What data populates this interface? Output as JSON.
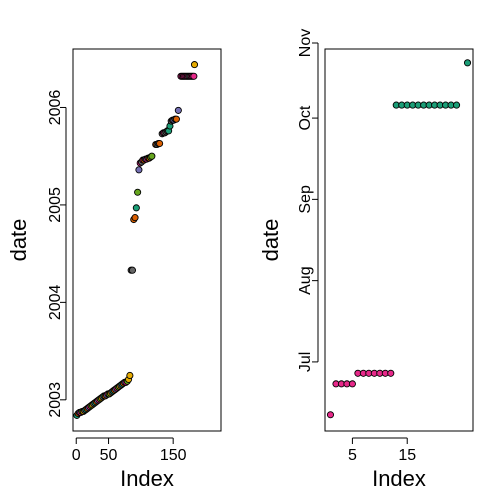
{
  "chart_data": [
    {
      "type": "scatter",
      "xlabel": "Index",
      "ylabel": "date",
      "xlim": [
        -5,
        224
      ],
      "ylim": [
        2002.68,
        2006.6
      ],
      "x_ticks": [
        0,
        50,
        150
      ],
      "x_tick_labels": [
        "0",
        "50",
        "150"
      ],
      "y_ticks": [
        2003,
        2004,
        2005,
        2006
      ],
      "y_tick_labels": [
        "2003",
        "2004",
        "2005",
        "2006"
      ],
      "palette": [
        "#1B9E77",
        "#D95F02",
        "#7570B3",
        "#E7298A",
        "#66A61E",
        "#E6AB02",
        "#666666"
      ],
      "points": [
        {
          "x": 1,
          "y": 2002.84,
          "c": 0
        },
        {
          "x": 3,
          "y": 2002.86,
          "c": 1
        },
        {
          "x": 5,
          "y": 2002.87,
          "c": 2
        },
        {
          "x": 7,
          "y": 2002.87,
          "c": 3
        },
        {
          "x": 9,
          "y": 2002.88,
          "c": 4
        },
        {
          "x": 11,
          "y": 2002.88,
          "c": 5
        },
        {
          "x": 13,
          "y": 2002.89,
          "c": 6
        },
        {
          "x": 15,
          "y": 2002.9,
          "c": 0
        },
        {
          "x": 17,
          "y": 2002.91,
          "c": 1
        },
        {
          "x": 19,
          "y": 2002.92,
          "c": 2
        },
        {
          "x": 21,
          "y": 2002.93,
          "c": 3
        },
        {
          "x": 23,
          "y": 2002.94,
          "c": 4
        },
        {
          "x": 25,
          "y": 2002.95,
          "c": 5
        },
        {
          "x": 27,
          "y": 2002.96,
          "c": 6
        },
        {
          "x": 29,
          "y": 2002.97,
          "c": 0
        },
        {
          "x": 31,
          "y": 2002.98,
          "c": 1
        },
        {
          "x": 33,
          "y": 2002.99,
          "c": 2
        },
        {
          "x": 35,
          "y": 2003.0,
          "c": 3
        },
        {
          "x": 37,
          "y": 2003.01,
          "c": 4
        },
        {
          "x": 39,
          "y": 2003.02,
          "c": 5
        },
        {
          "x": 41,
          "y": 2003.03,
          "c": 6
        },
        {
          "x": 43,
          "y": 2003.04,
          "c": 0
        },
        {
          "x": 45,
          "y": 2003.04,
          "c": 1
        },
        {
          "x": 47,
          "y": 2003.05,
          "c": 2
        },
        {
          "x": 49,
          "y": 2003.06,
          "c": 3
        },
        {
          "x": 51,
          "y": 2003.06,
          "c": 4
        },
        {
          "x": 53,
          "y": 2003.07,
          "c": 5
        },
        {
          "x": 55,
          "y": 2003.08,
          "c": 6
        },
        {
          "x": 57,
          "y": 2003.09,
          "c": 0
        },
        {
          "x": 59,
          "y": 2003.1,
          "c": 1
        },
        {
          "x": 61,
          "y": 2003.11,
          "c": 2
        },
        {
          "x": 63,
          "y": 2003.12,
          "c": 3
        },
        {
          "x": 65,
          "y": 2003.13,
          "c": 4
        },
        {
          "x": 67,
          "y": 2003.14,
          "c": 5
        },
        {
          "x": 69,
          "y": 2003.15,
          "c": 6
        },
        {
          "x": 71,
          "y": 2003.16,
          "c": 0
        },
        {
          "x": 73,
          "y": 2003.17,
          "c": 1
        },
        {
          "x": 75,
          "y": 2003.18,
          "c": 2
        },
        {
          "x": 77,
          "y": 2003.18,
          "c": 3
        },
        {
          "x": 79,
          "y": 2003.19,
          "c": 4
        },
        {
          "x": 81,
          "y": 2003.21,
          "c": 5
        },
        {
          "x": 83,
          "y": 2003.25,
          "c": 5
        },
        {
          "x": 85,
          "y": 2004.33,
          "c": 6
        },
        {
          "x": 87,
          "y": 2004.33,
          "c": 6
        },
        {
          "x": 89,
          "y": 2004.85,
          "c": 1
        },
        {
          "x": 91,
          "y": 2004.87,
          "c": 1
        },
        {
          "x": 93,
          "y": 2004.97,
          "c": 0
        },
        {
          "x": 95,
          "y": 2005.13,
          "c": 4
        },
        {
          "x": 97,
          "y": 2005.36,
          "c": 2
        },
        {
          "x": 99,
          "y": 2005.43,
          "c": 3
        },
        {
          "x": 101,
          "y": 2005.44,
          "c": 6
        },
        {
          "x": 103,
          "y": 2005.46,
          "c": 3
        },
        {
          "x": 105,
          "y": 2005.46,
          "c": 1
        },
        {
          "x": 107,
          "y": 2005.47,
          "c": 2
        },
        {
          "x": 109,
          "y": 2005.47,
          "c": 3
        },
        {
          "x": 111,
          "y": 2005.48,
          "c": 6
        },
        {
          "x": 113,
          "y": 2005.48,
          "c": 1
        },
        {
          "x": 115,
          "y": 2005.49,
          "c": 4
        },
        {
          "x": 117,
          "y": 2005.5,
          "c": 4
        },
        {
          "x": 123,
          "y": 2005.62,
          "c": 1
        },
        {
          "x": 125,
          "y": 2005.62,
          "c": 6
        },
        {
          "x": 127,
          "y": 2005.63,
          "c": 6
        },
        {
          "x": 129,
          "y": 2005.63,
          "c": 1
        },
        {
          "x": 133,
          "y": 2005.73,
          "c": 6
        },
        {
          "x": 135,
          "y": 2005.74,
          "c": 3
        },
        {
          "x": 137,
          "y": 2005.74,
          "c": 6
        },
        {
          "x": 139,
          "y": 2005.75,
          "c": 6
        },
        {
          "x": 141,
          "y": 2005.76,
          "c": 6
        },
        {
          "x": 143,
          "y": 2005.76,
          "c": 0
        },
        {
          "x": 145,
          "y": 2005.81,
          "c": 0
        },
        {
          "x": 147,
          "y": 2005.86,
          "c": 6
        },
        {
          "x": 149,
          "y": 2005.87,
          "c": 6
        },
        {
          "x": 151,
          "y": 2005.87,
          "c": 2
        },
        {
          "x": 153,
          "y": 2005.88,
          "c": 6
        },
        {
          "x": 155,
          "y": 2005.88,
          "c": 1
        },
        {
          "x": 158,
          "y": 2005.97,
          "c": 2
        },
        {
          "x": 162,
          "y": 2006.32,
          "c": 3
        },
        {
          "x": 164,
          "y": 2006.32,
          "c": 3
        },
        {
          "x": 166,
          "y": 2006.32,
          "c": 3
        },
        {
          "x": 168,
          "y": 2006.32,
          "c": 3
        },
        {
          "x": 170,
          "y": 2006.32,
          "c": 3
        },
        {
          "x": 172,
          "y": 2006.32,
          "c": 3
        },
        {
          "x": 174,
          "y": 2006.32,
          "c": 6
        },
        {
          "x": 176,
          "y": 2006.32,
          "c": 6
        },
        {
          "x": 178,
          "y": 2006.32,
          "c": 3
        },
        {
          "x": 180,
          "y": 2006.32,
          "c": 3
        },
        {
          "x": 182,
          "y": 2006.32,
          "c": 3
        },
        {
          "x": 183,
          "y": 2006.44,
          "c": 5
        }
      ]
    },
    {
      "type": "scatter",
      "xlabel": "Index",
      "ylabel": "date",
      "xlim": [
        0,
        27
      ],
      "ylim": [
        -0.35,
        4.35
      ],
      "x_ticks": [
        5,
        15
      ],
      "x_tick_labels": [
        "5",
        "15"
      ],
      "y_ticks": [
        0.5,
        1.5,
        2.5,
        3.5,
        4.5
      ],
      "y_tick_labels": [
        "Jul",
        "Aug",
        "Sep",
        "Oct",
        "Nov"
      ],
      "points": [
        {
          "x": 1,
          "y": -0.15,
          "color": "#E7298A"
        },
        {
          "x": 2,
          "y": 0.23,
          "color": "#E7298A"
        },
        {
          "x": 3,
          "y": 0.23,
          "color": "#E7298A"
        },
        {
          "x": 4,
          "y": 0.23,
          "color": "#E7298A"
        },
        {
          "x": 5,
          "y": 0.23,
          "color": "#E7298A"
        },
        {
          "x": 6,
          "y": 0.36,
          "color": "#E7298A"
        },
        {
          "x": 7,
          "y": 0.36,
          "color": "#E7298A"
        },
        {
          "x": 8,
          "y": 0.36,
          "color": "#E7298A"
        },
        {
          "x": 9,
          "y": 0.36,
          "color": "#E7298A"
        },
        {
          "x": 10,
          "y": 0.36,
          "color": "#E7298A"
        },
        {
          "x": 11,
          "y": 0.36,
          "color": "#E7298A"
        },
        {
          "x": 12,
          "y": 0.36,
          "color": "#E7298A"
        },
        {
          "x": 13,
          "y": 3.66,
          "color": "#1B9E77"
        },
        {
          "x": 14,
          "y": 3.66,
          "color": "#1B9E77"
        },
        {
          "x": 15,
          "y": 3.66,
          "color": "#1B9E77"
        },
        {
          "x": 16,
          "y": 3.66,
          "color": "#1B9E77"
        },
        {
          "x": 17,
          "y": 3.66,
          "color": "#1B9E77"
        },
        {
          "x": 18,
          "y": 3.66,
          "color": "#1B9E77"
        },
        {
          "x": 19,
          "y": 3.66,
          "color": "#1B9E77"
        },
        {
          "x": 20,
          "y": 3.66,
          "color": "#1B9E77"
        },
        {
          "x": 21,
          "y": 3.66,
          "color": "#1B9E77"
        },
        {
          "x": 22,
          "y": 3.66,
          "color": "#1B9E77"
        },
        {
          "x": 23,
          "y": 3.66,
          "color": "#1B9E77"
        },
        {
          "x": 24,
          "y": 3.66,
          "color": "#1B9E77"
        },
        {
          "x": 26,
          "y": 4.18,
          "color": "#1B9E77"
        }
      ]
    }
  ]
}
